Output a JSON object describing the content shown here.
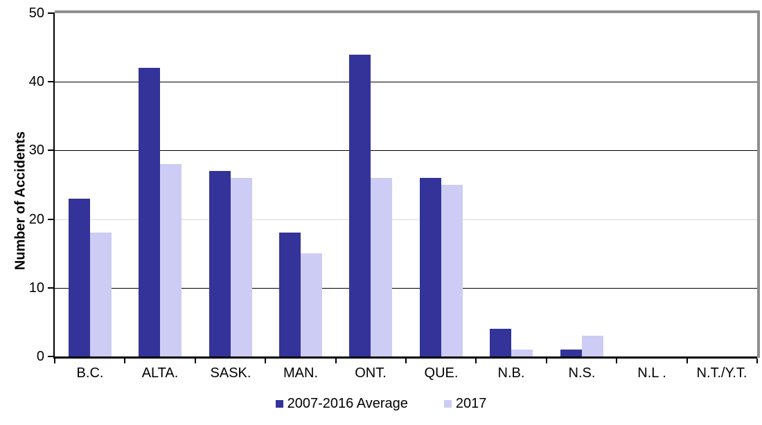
{
  "chart_data": {
    "type": "bar",
    "title": "",
    "xlabel": "",
    "ylabel": "Number of Accidents",
    "ylim": [
      0,
      50
    ],
    "yticks": [
      0,
      10,
      20,
      30,
      40,
      50
    ],
    "categories": [
      "B.C.",
      "ALTA.",
      "SASK.",
      "MAN.",
      "ONT.",
      "QUE.",
      "N.B.",
      "N.S.",
      "N.L .",
      "N.T./Y.T."
    ],
    "series": [
      {
        "name": "2007-2016 Average",
        "color": "#333399",
        "values": [
          23,
          42,
          27,
          18,
          44,
          26,
          4,
          1,
          0,
          0
        ]
      },
      {
        "name": "2017",
        "color": "#ccccf5",
        "values": [
          18,
          28,
          26,
          15,
          26,
          25,
          1,
          3,
          0,
          0
        ]
      }
    ],
    "gridlines": [
      {
        "value": 10,
        "color": "#000000"
      },
      {
        "value": 20,
        "color": "#dcdcdc"
      },
      {
        "value": 30,
        "color": "#000000"
      },
      {
        "value": 40,
        "color": "#000000"
      }
    ],
    "legend_position": "bottom",
    "grid": "horizontal"
  },
  "colors": {
    "frame": "#8f8f8f",
    "axis": "#000000",
    "background": "#ffffff",
    "text": "#000000"
  }
}
